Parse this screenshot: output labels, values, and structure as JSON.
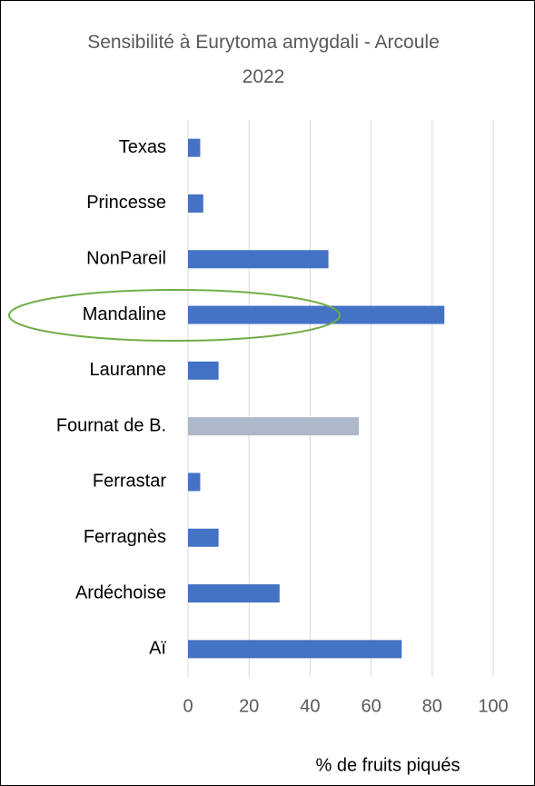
{
  "chart_data": {
    "type": "bar",
    "orientation": "horizontal",
    "title": "Sensibilité à Eurytoma amygdali - Arcoule 2022",
    "categories": [
      "Texas",
      "Princesse",
      "NonPareil",
      "Mandaline",
      "Lauranne",
      "Fournat de B.",
      "Ferrastar",
      "Ferragnès",
      "Ardéchoise",
      "Aï"
    ],
    "values": [
      4,
      5,
      46,
      84,
      10,
      56,
      4,
      10,
      30,
      70
    ],
    "colors": [
      "#4472c4",
      "#4472c4",
      "#4472c4",
      "#4472c4",
      "#4472c4",
      "#adb9ca",
      "#4472c4",
      "#4472c4",
      "#4472c4",
      "#4472c4"
    ],
    "xlim": [
      0,
      100
    ],
    "xticks": [
      0,
      20,
      40,
      60,
      80,
      100
    ],
    "grid": true,
    "x_label": "% de fruits piqués"
  }
}
